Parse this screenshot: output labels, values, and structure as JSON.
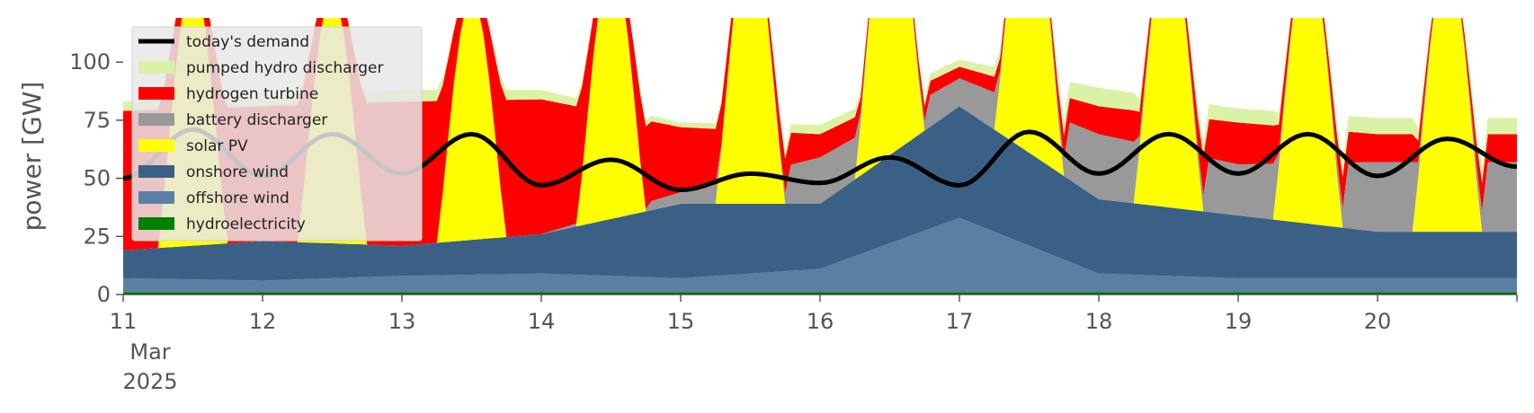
{
  "chart_data": {
    "type": "area",
    "title": "",
    "xlabel": "",
    "ylabel": "power [GW]",
    "xlim": [
      "2025-03-11T00:00",
      "2025-03-20T23:00"
    ],
    "ylim": [
      0,
      119
    ],
    "yticks": [
      0,
      25,
      50,
      75,
      100
    ],
    "ytick_labels": [
      "0",
      "25",
      "50",
      "75",
      "100"
    ],
    "xticks": [
      "2025-03-11",
      "2025-03-12",
      "2025-03-13",
      "2025-03-14",
      "2025-03-15",
      "2025-03-16",
      "2025-03-17",
      "2025-03-18",
      "2025-03-19",
      "2025-03-20"
    ],
    "xtick_labels": [
      "11",
      "12",
      "13",
      "14",
      "15",
      "16",
      "17",
      "18",
      "19",
      "20"
    ],
    "xtick_sublabels": [
      "Mar",
      "2025"
    ],
    "grid": false,
    "legend_position": "top-left",
    "legend": [
      "today's demand",
      "pumped hydro discharger",
      "hydrogen turbine",
      "battery discharger",
      "solar PV",
      "onshore wind",
      "offshore wind",
      "hydroelectricity"
    ],
    "day_labels": [
      "11",
      "12",
      "13",
      "14",
      "15",
      "16",
      "17",
      "18",
      "19",
      "20"
    ],
    "stacked_series": [
      {
        "name": "hydroelectricity",
        "color": "#008000",
        "values": [
          1,
          1,
          1,
          1,
          1,
          1,
          1,
          1,
          1,
          1
        ]
      },
      {
        "name": "offshore wind",
        "color": "#5b7fa3",
        "values": [
          6,
          5,
          7,
          8,
          6,
          10,
          32,
          8,
          6,
          6
        ]
      },
      {
        "name": "onshore wind",
        "color": "#3a6185",
        "values": [
          12,
          17,
          13,
          17,
          32,
          28,
          48,
          32,
          27,
          20
        ]
      },
      {
        "name": "solar PV",
        "color": "#ffff00",
        "values": [
          118,
          110,
          105,
          105,
          118,
          118,
          118,
          118,
          118,
          118
        ]
      },
      {
        "name": "battery discharger",
        "color": "#999999",
        "values": [
          0,
          0,
          0,
          0,
          5,
          20,
          12,
          28,
          22,
          30
        ]
      },
      {
        "name": "hydrogen turbine",
        "color": "#ff0000",
        "values": [
          60,
          58,
          62,
          58,
          28,
          10,
          5,
          12,
          18,
          12
        ]
      },
      {
        "name": "pumped hydro discharger",
        "color": "#d9f2a6",
        "values": [
          4,
          3,
          5,
          4,
          2,
          4,
          3,
          8,
          6,
          7
        ]
      }
    ],
    "demand": {
      "name": "today's demand",
      "color": "#000000",
      "values": [
        50,
        71,
        51,
        69,
        52,
        69,
        47,
        58,
        45,
        52,
        48,
        59,
        47,
        70,
        52,
        69,
        52,
        69,
        51,
        67,
        55
      ]
    }
  }
}
